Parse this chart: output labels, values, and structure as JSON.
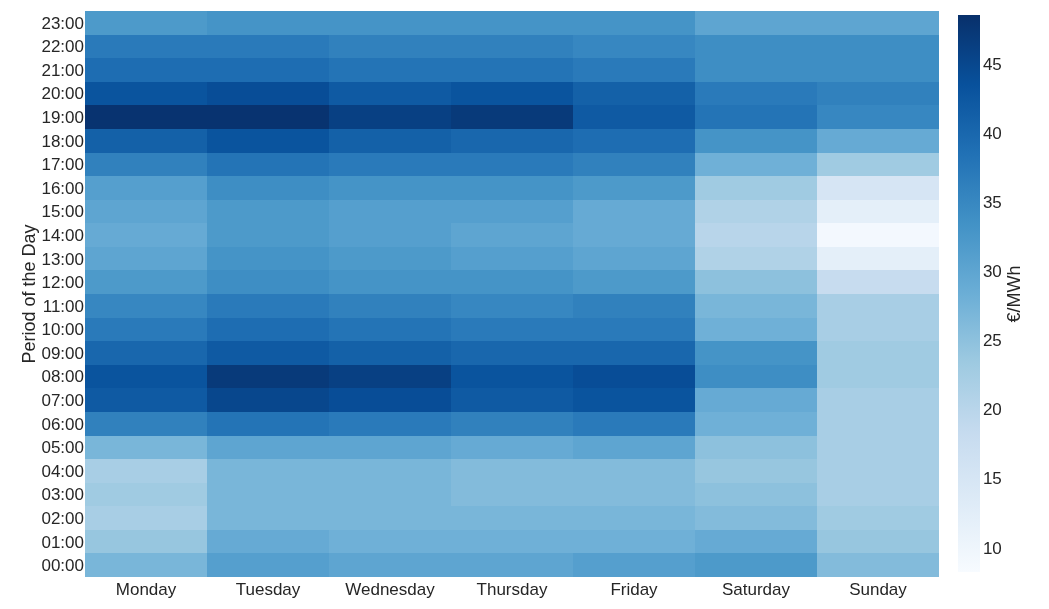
{
  "chart_data": {
    "type": "heatmap",
    "ylabel": "Period of the Day",
    "clabel": "€/MWh",
    "categories": [
      "Monday",
      "Tuesday",
      "Wednesday",
      "Thursday",
      "Friday",
      "Saturday",
      "Sunday"
    ],
    "y_categories": [
      "23:00",
      "22:00",
      "21:00",
      "20:00",
      "19:00",
      "18:00",
      "17:00",
      "16:00",
      "15:00",
      "14:00",
      "13:00",
      "12:00",
      "11:00",
      "10:00",
      "09:00",
      "08:00",
      "07:00",
      "06:00",
      "05:00",
      "04:00",
      "03:00",
      "02:00",
      "01:00",
      "00:00"
    ],
    "cells": [
      [
        32,
        33,
        33,
        33,
        33,
        30,
        30
      ],
      [
        37,
        37,
        36,
        36,
        35,
        34,
        34
      ],
      [
        39,
        39,
        38,
        38,
        37,
        34,
        34
      ],
      [
        43,
        44,
        42,
        43,
        41,
        37,
        36
      ],
      [
        48,
        48,
        46,
        47,
        42,
        38,
        35
      ],
      [
        41,
        43,
        41,
        40,
        39,
        33,
        29
      ],
      [
        36,
        38,
        37,
        37,
        36,
        28,
        23
      ],
      [
        31,
        34,
        33,
        33,
        32,
        23,
        15
      ],
      [
        30,
        32,
        31,
        31,
        29,
        21,
        12
      ],
      [
        29,
        32,
        31,
        30,
        29,
        20,
        9
      ],
      [
        30,
        33,
        32,
        31,
        30,
        21,
        12
      ],
      [
        32,
        34,
        33,
        33,
        32,
        25,
        18
      ],
      [
        35,
        37,
        36,
        35,
        36,
        27,
        22
      ],
      [
        37,
        39,
        38,
        37,
        37,
        28,
        22
      ],
      [
        40,
        42,
        41,
        40,
        40,
        33,
        23
      ],
      [
        43,
        47,
        46,
        43,
        44,
        34,
        23
      ],
      [
        42,
        45,
        44,
        42,
        43,
        29,
        22
      ],
      [
        36,
        38,
        37,
        36,
        37,
        28,
        22
      ],
      [
        27,
        30,
        30,
        29,
        30,
        25,
        22
      ],
      [
        22,
        27,
        27,
        26,
        26,
        24,
        22
      ],
      [
        23,
        27,
        27,
        26,
        26,
        25,
        22
      ],
      [
        22,
        27,
        27,
        27,
        27,
        26,
        23
      ],
      [
        24,
        29,
        28,
        28,
        28,
        29,
        24
      ],
      [
        27,
        31,
        30,
        30,
        31,
        32,
        26
      ]
    ],
    "clim": [
      8.2,
      48.5
    ],
    "cticks": [
      10,
      15,
      20,
      25,
      30,
      35,
      40,
      45
    ]
  }
}
